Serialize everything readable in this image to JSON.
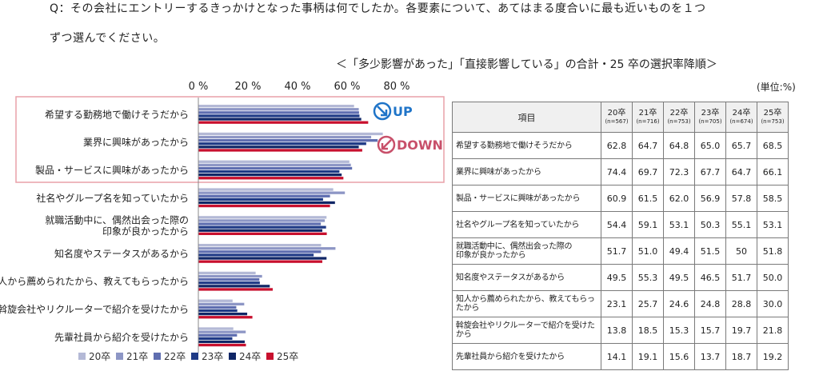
{
  "question": {
    "line1": "Q：その会社にエントリーするきっかけとなった事柄は何でしたか。各要素について、あてはまる度合いに最も近いものを１つ",
    "line2": "ずつ選んでください。"
  },
  "subtitle": "＜「多少影響があった」「直接影響している」の合計・25 卒の選択率降順＞",
  "unit_label": "(単位:%)",
  "badges": {
    "up": "UP",
    "down": "DOWN"
  },
  "colors": {
    "series": [
      "#b4b9d6",
      "#8d96c5",
      "#5f6eb0",
      "#1f3a86",
      "#102666",
      "#c8102e"
    ],
    "highlight_border": "#e8a0a8",
    "up": "#1f74c8",
    "down": "#c8506a"
  },
  "chart_data": {
    "type": "bar",
    "orientation": "horizontal",
    "title": "",
    "xlabel": "",
    "ylabel": "",
    "xlim": [
      0,
      80
    ],
    "x_ticks": [
      "0 %",
      "20 %",
      "40 %",
      "60 %",
      "80 %"
    ],
    "categories": [
      [
        "希望する勤務地で働けそうだから"
      ],
      [
        "業界に興味があったから"
      ],
      [
        "製品・サービスに興味があったから"
      ],
      [
        "社名やグループ名を知っていたから"
      ],
      [
        "就職活動中に、偶然出会った際の",
        "印象が良かったから"
      ],
      [
        "知名度やステータスがあるから"
      ],
      [
        "知人から薦められたから、教えてもらったから"
      ],
      [
        "斡旋会社やリクルーターで紹介を受けたから"
      ],
      [
        "先輩社員から紹介を受けたから"
      ]
    ],
    "series": [
      {
        "name": "20卒",
        "values": [
          62.8,
          74.4,
          60.9,
          54.4,
          51.7,
          49.5,
          23.1,
          13.8,
          14.1
        ]
      },
      {
        "name": "21卒",
        "values": [
          64.7,
          69.7,
          61.5,
          59.1,
          51.0,
          55.3,
          25.7,
          18.5,
          19.1
        ]
      },
      {
        "name": "22卒",
        "values": [
          64.8,
          72.3,
          62.0,
          53.1,
          49.4,
          49.5,
          24.6,
          15.3,
          15.6
        ]
      },
      {
        "name": "23卒",
        "values": [
          65.0,
          67.7,
          56.9,
          50.3,
          51.5,
          46.5,
          24.8,
          15.7,
          13.7
        ]
      },
      {
        "name": "24卒",
        "values": [
          65.7,
          64.7,
          57.8,
          55.1,
          50,
          51.7,
          28.8,
          19.7,
          18.7
        ]
      },
      {
        "name": "25卒",
        "values": [
          68.5,
          66.1,
          58.5,
          53.1,
          51.8,
          50.0,
          30.0,
          21.8,
          19.2
        ]
      }
    ],
    "legend_position": "bottom",
    "grid": false
  },
  "table": {
    "header_item": "項目",
    "columns": [
      {
        "year": "20卒",
        "n": "(n=567)"
      },
      {
        "year": "21卒",
        "n": "(n=716)"
      },
      {
        "year": "22卒",
        "n": "(n=753)"
      },
      {
        "year": "23卒",
        "n": "(n=705)"
      },
      {
        "year": "24卒",
        "n": "(n=674)"
      },
      {
        "year": "25卒",
        "n": "(n=753)"
      }
    ],
    "rows": [
      {
        "label": "希望する勤務地で働けそうだから",
        "values": [
          "62.8",
          "64.7",
          "64.8",
          "65.0",
          "65.7",
          "68.5"
        ]
      },
      {
        "label": "業界に興味があったから",
        "values": [
          "74.4",
          "69.7",
          "72.3",
          "67.7",
          "64.7",
          "66.1"
        ]
      },
      {
        "label": "製品・サービスに興味があったから",
        "values": [
          "60.9",
          "61.5",
          "62.0",
          "56.9",
          "57.8",
          "58.5"
        ]
      },
      {
        "label": "社名やグループ名を知っていたから",
        "values": [
          "54.4",
          "59.1",
          "53.1",
          "50.3",
          "55.1",
          "53.1"
        ]
      },
      {
        "label": "就職活動中に、偶然出会った際の\n印象が良かったから",
        "values": [
          "51.7",
          "51.0",
          "49.4",
          "51.5",
          "50",
          "51.8"
        ]
      },
      {
        "label": "知名度やステータスがあるから",
        "values": [
          "49.5",
          "55.3",
          "49.5",
          "46.5",
          "51.7",
          "50.0"
        ]
      },
      {
        "label": "知人から薦められたから、教えてもらったから",
        "values": [
          "23.1",
          "25.7",
          "24.6",
          "24.8",
          "28.8",
          "30.0"
        ]
      },
      {
        "label": "斡旋会社やリクルーターで紹介を受けたから",
        "values": [
          "13.8",
          "18.5",
          "15.3",
          "15.7",
          "19.7",
          "21.8"
        ]
      },
      {
        "label": "先輩社員から紹介を受けたから",
        "values": [
          "14.1",
          "19.1",
          "15.6",
          "13.7",
          "18.7",
          "19.2"
        ]
      }
    ]
  }
}
